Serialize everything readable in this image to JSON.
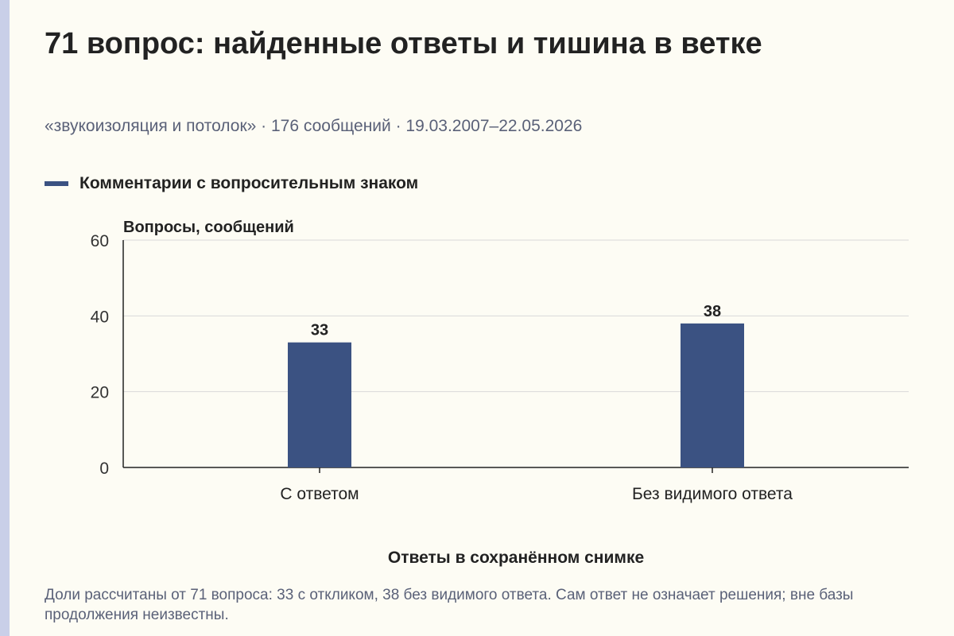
{
  "title": "71 вопрос: найденные ответы и тишина в ветке",
  "subtitle": "«звукоизоляция и потолок» · 176 сообщений · 19.03.2007–22.05.2026",
  "legend": {
    "label": "Комментарии с вопросительным знаком",
    "color": "#3b5282"
  },
  "note": "Доли рассчитаны от 71 вопроса: 33 с откликом, 38 без видимого ответа. Сам ответ не означает решения; вне базы продолжения неизвестны.",
  "chart_data": {
    "type": "bar",
    "categories": [
      "С ответом",
      "Без видимого ответа"
    ],
    "series": [
      {
        "name": "Комментарии с вопросительным знаком",
        "values": [
          33,
          38
        ],
        "color": "#3b5282"
      }
    ],
    "ylabel": "Вопросы, сообщений",
    "xlabel": "Ответы в сохранённом снимке",
    "ylim": [
      0,
      60
    ],
    "yticks": [
      0,
      20,
      40,
      60
    ],
    "grid": true,
    "legend_position": "top-left",
    "data_labels": true
  }
}
